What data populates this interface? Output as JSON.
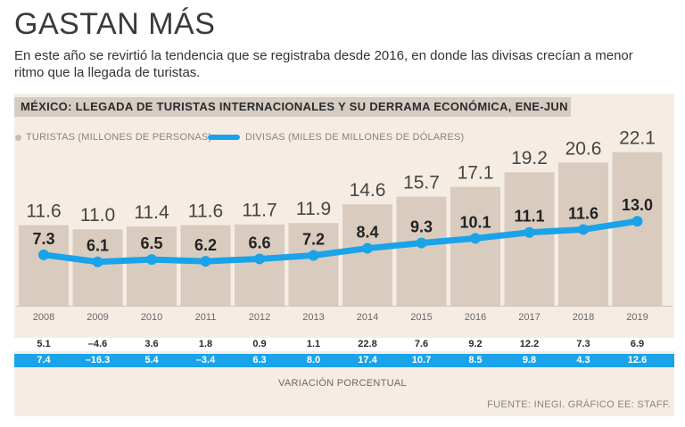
{
  "headline": "GASTAN MÁS",
  "subtitle": "En este año se revirtió la tendencia que se registraba desde 2016, en donde las divisas crecían a menor ritmo que la llegada de turistas.",
  "chart_title": "MÉXICO: LLEGADA DE TURISTAS INTERNACIONALES Y SU DERRAMA ECONÓMICA, ENE-JUN",
  "legend": {
    "tourists": "TURISTAS (MILLONES DE PERSONAS)",
    "currency": "DIVISAS (MILES DE MILLONES DE DÓLARES)"
  },
  "colors": {
    "bar": "#d9ccbf",
    "line": "#1aa3e8",
    "panel": "#f5ede4"
  },
  "chart_data": {
    "type": "bar",
    "title": "MÉXICO: LLEGADA DE TURISTAS INTERNACIONALES Y SU DERRAMA ECONÓMICA, ENE-JUN",
    "categories": [
      "2008",
      "2009",
      "2010",
      "2011",
      "2012",
      "2013",
      "2014",
      "2015",
      "2016",
      "2017",
      "2018",
      "2019"
    ],
    "series": [
      {
        "name": "TURISTAS (MILLONES DE PERSONAS)",
        "type": "bar",
        "values": [
          11.6,
          11.0,
          11.4,
          11.6,
          11.7,
          11.9,
          14.6,
          15.7,
          17.1,
          19.2,
          20.6,
          22.1
        ],
        "labels": [
          "11.6",
          "11.0",
          "11.4",
          "11.6",
          "11.7",
          "11.9",
          "14.6",
          "15.7",
          "17.1",
          "19.2",
          "20.6",
          "22.1"
        ]
      },
      {
        "name": "DIVISAS (MILES DE MILLONES DE DÓLARES)",
        "type": "line",
        "values": [
          7.3,
          6.1,
          6.5,
          6.2,
          6.6,
          7.2,
          8.4,
          9.3,
          10.1,
          11.1,
          11.6,
          13.0
        ],
        "labels": [
          "7.3",
          "6.1",
          "6.5",
          "6.2",
          "6.6",
          "7.2",
          "8.4",
          "9.3",
          "10.1",
          "11.1",
          "11.6",
          "13.0"
        ]
      }
    ],
    "xlabel": "",
    "ylabel": "",
    "legend": "top-left",
    "grid": false
  },
  "variation": {
    "label": "VARIACIÓN PORCENTUAL",
    "tourists": [
      "5.1",
      "-4.6",
      "3.6",
      "1.8",
      "0.9",
      "1.1",
      "22.8",
      "7.6",
      "9.2",
      "12.2",
      "7.3",
      "6.9"
    ],
    "currency": [
      "7.4",
      "-16.3",
      "5.4",
      "-3.4",
      "6.3",
      "8.0",
      "17.4",
      "10.7",
      "8.5",
      "9.8",
      "4.3",
      "12.6"
    ]
  },
  "source": "FUENTE: INEGI. GRÁFICO EE: STAFF."
}
